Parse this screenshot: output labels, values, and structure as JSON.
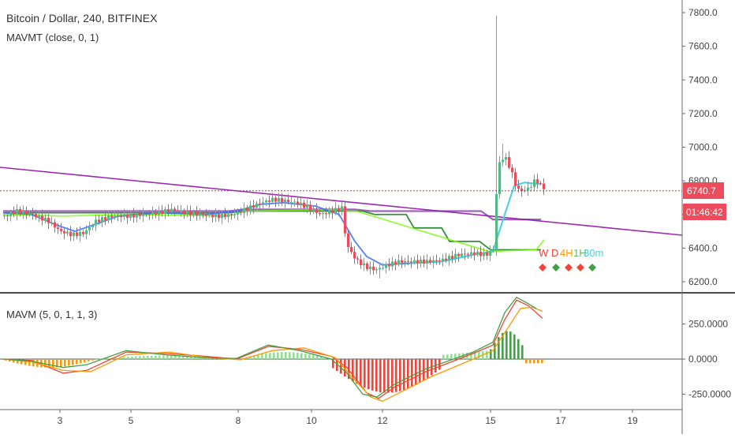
{
  "header": {
    "title": "Bitcoin / Dollar, 240, BITFINEX",
    "indicator_main": "MAVMT (close, 0, 1)",
    "indicator_sub": "MAVM (5, 0, 1, 1, 3)"
  },
  "price_axis": {
    "ticks": [
      "7800.0",
      "7600.0",
      "7400.0",
      "7200.0",
      "7000.0",
      "6800.0",
      "6600.0",
      "6400.0",
      "6200.0"
    ],
    "tick_values": [
      7800,
      7600,
      7400,
      7200,
      7000,
      6800,
      6600,
      6400,
      6200
    ],
    "current_price": "6740.7",
    "countdown": "01:46:42"
  },
  "osc_axis": {
    "ticks": [
      "250.0000",
      "0.0000",
      "-250.0000"
    ],
    "tick_values": [
      250,
      0,
      -250
    ]
  },
  "time_axis": {
    "ticks": [
      "3",
      "5",
      "8",
      "10",
      "12",
      "15",
      "17",
      "19"
    ]
  },
  "timeframe_labels": {
    "labels": [
      "W",
      "D",
      "4H",
      "1H",
      "30m"
    ],
    "diamonds": [
      "red",
      "green",
      "red",
      "red",
      "green"
    ]
  },
  "colors": {
    "bull": "#53b987",
    "bear": "#eb4d5c",
    "trendline": "#9c27b0",
    "blue_ma": "#2962ff",
    "cyan_ma": "#4dd0e1",
    "dark_green": "#388e3c",
    "light_green": "#76ff03",
    "purple_ma": "#7b1fa2",
    "osc_green": "#43a047",
    "osc_orange": "#ff9800",
    "osc_red": "#f44336",
    "diamond_red": "#f44336",
    "diamond_green": "#43a047"
  },
  "chart_data": [
    {
      "type": "candlestick",
      "title": "Bitcoin / Dollar, 240, BITFINEX",
      "ylim": [
        6150,
        7900
      ],
      "x_ticks": [
        "3",
        "5",
        "8",
        "10",
        "12",
        "15",
        "17",
        "19"
      ],
      "current_price": 6740.7,
      "series": [
        {
          "name": "MAVMT (close, 0, 1)",
          "values": []
        }
      ]
    },
    {
      "type": "bar",
      "title": "MAVM (5, 0, 1, 1, 3)",
      "ylim": [
        -310,
        480
      ],
      "y_ticks": [
        250,
        0,
        -250
      ]
    }
  ]
}
